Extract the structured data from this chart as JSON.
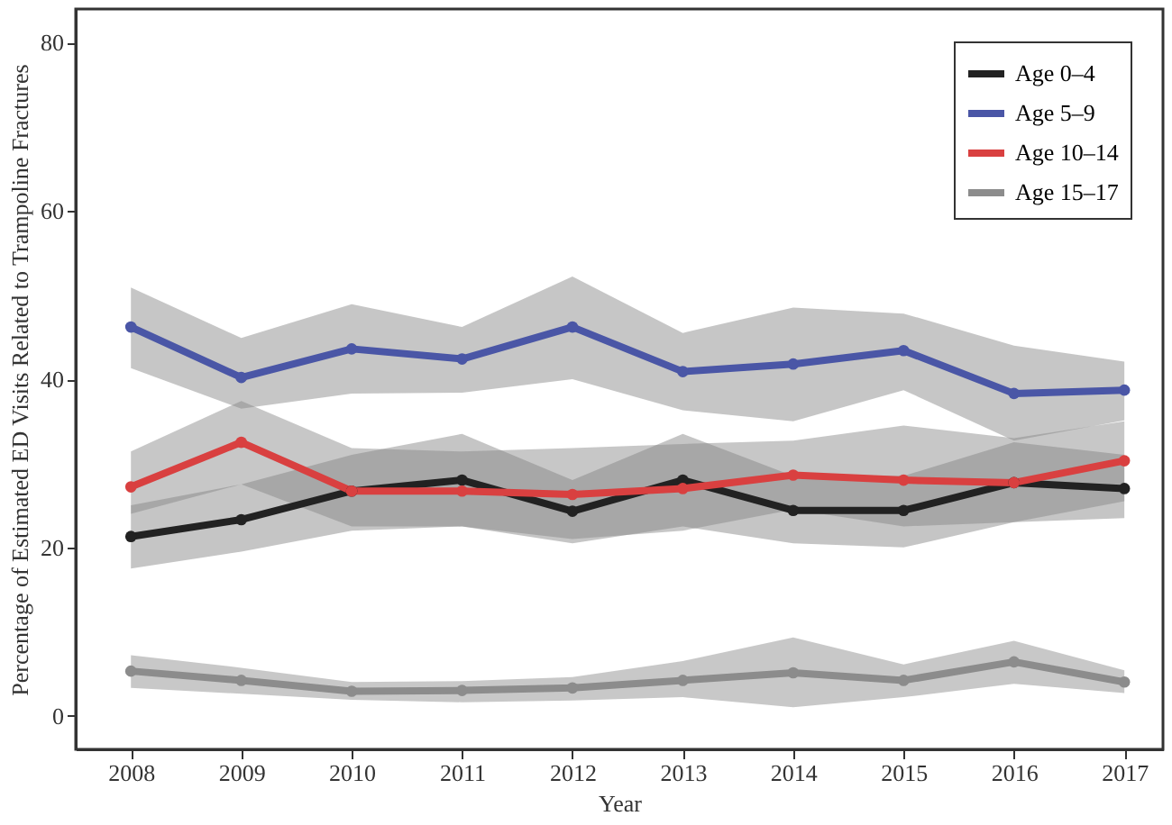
{
  "chart_data": {
    "type": "line",
    "xlabel": "Year",
    "ylabel": "Percentage of Estimated ED Visits Related to Trampoline Fractures",
    "x": [
      2008,
      2009,
      2010,
      2011,
      2012,
      2013,
      2014,
      2015,
      2016,
      2017
    ],
    "xlim": [
      2007.5,
      2017.35
    ],
    "xticks": [
      2008,
      2009,
      2010,
      2011,
      2012,
      2013,
      2014,
      2015,
      2016,
      2017
    ],
    "ylim": [
      -4,
      84
    ],
    "yticks": [
      0,
      20,
      40,
      60,
      80
    ],
    "grid": false,
    "legend": "top right",
    "marker": "circle",
    "line_style": "solid",
    "series": [
      {
        "name": "Age 0–4",
        "color": "#222222",
        "values": [
          21.3,
          23.3,
          26.7,
          28.0,
          24.3,
          28.0,
          24.4,
          24.4,
          27.7,
          27.0
        ],
        "lower": [
          17.5,
          19.5,
          22.0,
          22.5,
          20.5,
          22.5,
          20.5,
          20.0,
          23.0,
          23.5
        ],
        "upper": [
          25.0,
          27.5,
          31.0,
          33.5,
          28.0,
          33.5,
          28.5,
          28.5,
          32.5,
          31.0
        ]
      },
      {
        "name": "Age 5–9",
        "color": "#4a56a6",
        "values": [
          46.2,
          40.2,
          43.6,
          42.4,
          46.2,
          40.9,
          41.8,
          43.4,
          38.3,
          38.7
        ],
        "lower": [
          41.3,
          36.5,
          38.3,
          38.4,
          40.0,
          36.3,
          35.0,
          38.7,
          32.7,
          35.1
        ],
        "upper": [
          50.9,
          44.9,
          48.9,
          46.2,
          52.2,
          45.5,
          48.5,
          47.8,
          44.0,
          42.1
        ]
      },
      {
        "name": "Age 10–14",
        "color": "#d94040",
        "values": [
          27.2,
          32.5,
          26.7,
          26.7,
          26.3,
          27.0,
          28.6,
          28.0,
          27.7,
          30.3
        ],
        "lower": [
          24.0,
          27.5,
          22.5,
          22.5,
          21.0,
          22.0,
          24.5,
          22.5,
          23.0,
          25.5
        ],
        "upper": [
          31.4,
          37.4,
          31.8,
          31.4,
          31.8,
          32.3,
          32.7,
          34.5,
          33.0,
          35.0
        ]
      },
      {
        "name": "Age 15–17",
        "color": "#8c8c8c",
        "values": [
          5.3,
          4.2,
          2.9,
          3.0,
          3.3,
          4.2,
          5.1,
          4.2,
          6.4,
          4.0
        ],
        "lower": [
          3.3,
          2.6,
          1.9,
          1.6,
          1.8,
          2.2,
          1.0,
          2.2,
          3.8,
          2.7
        ],
        "upper": [
          7.2,
          5.7,
          4.0,
          4.1,
          4.6,
          6.5,
          9.3,
          6.1,
          8.9,
          5.4
        ]
      }
    ]
  }
}
